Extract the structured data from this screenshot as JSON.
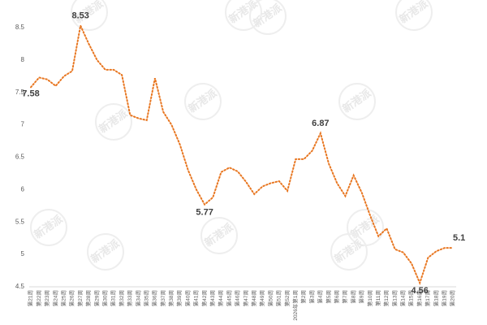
{
  "chart_data": {
    "type": "line",
    "color": "#e87722",
    "watermark": "新港派",
    "categories": [
      "第21周",
      "第22周",
      "第23周",
      "第24周",
      "第25周",
      "第26周",
      "第27周",
      "第28周",
      "第29周",
      "第30周",
      "第31周",
      "第32周",
      "第33周",
      "第34周",
      "第35周",
      "第36周",
      "第37周",
      "第38周",
      "第39周",
      "第40周",
      "第41周",
      "第42周",
      "第43周",
      "第44周",
      "第45周",
      "第46周",
      "第47周",
      "第48周",
      "第49周",
      "第50周",
      "第51周",
      "第52周",
      "2026年第1周",
      "第2周",
      "第3周",
      "第4周",
      "第5周",
      "第6周",
      "第7周",
      "第8周",
      "第9周",
      "第10周",
      "第11周",
      "第12周",
      "第13周",
      "第14周",
      "第15周",
      "第16周",
      "第17周",
      "第18周",
      "第19周",
      "第20周"
    ],
    "values": [
      7.58,
      7.73,
      7.7,
      7.6,
      7.75,
      7.83,
      8.53,
      8.25,
      8.0,
      7.85,
      7.85,
      7.77,
      7.15,
      7.1,
      7.07,
      7.72,
      7.2,
      7.0,
      6.7,
      6.3,
      6.0,
      5.77,
      5.88,
      6.27,
      6.34,
      6.28,
      6.12,
      5.93,
      6.05,
      6.1,
      6.13,
      5.98,
      6.47,
      6.47,
      6.6,
      6.87,
      6.4,
      6.1,
      5.9,
      6.22,
      5.95,
      5.6,
      5.28,
      5.4,
      5.08,
      5.03,
      4.86,
      4.56,
      4.95,
      5.05,
      5.1,
      5.1
    ],
    "value_labels": [
      "7.58",
      null,
      null,
      null,
      null,
      null,
      "8.53",
      null,
      null,
      null,
      null,
      null,
      null,
      null,
      null,
      null,
      null,
      null,
      null,
      null,
      null,
      "5.77",
      null,
      null,
      null,
      null,
      null,
      null,
      null,
      null,
      null,
      null,
      null,
      null,
      null,
      "6.87",
      null,
      null,
      null,
      null,
      null,
      null,
      null,
      null,
      null,
      null,
      null,
      "4.56",
      null,
      null,
      null,
      "5.1"
    ],
    "ylim": [
      4.5,
      8.5
    ],
    "yticks": [
      4.5,
      5,
      5.5,
      6,
      6.5,
      7,
      7.5,
      8,
      8.5
    ]
  }
}
